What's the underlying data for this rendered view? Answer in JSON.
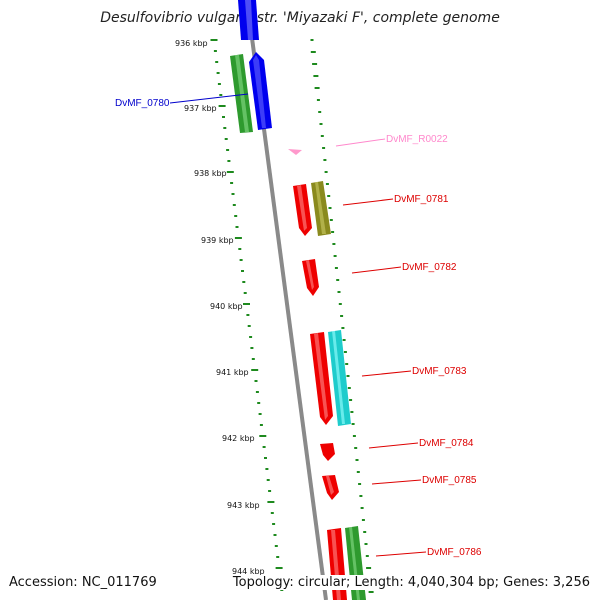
{
  "title": "Desulfovibrio vulgaris str. 'Miyazaki F', complete genome",
  "accession_text": "Accession: NC_011769",
  "topology_text": "Topology: circular; Length: 4,040,304 bp; Genes: 3,256",
  "colors": {
    "backbone": "#8a8a8a",
    "gc_ticks": "#1e8a1e",
    "forward_gene_blue": "#0000ee",
    "forward_gene_green": "#2e9a2e",
    "reverse_gene_red": "#ee0000",
    "olive": "#8a8a1e",
    "cyan": "#1ecccc",
    "rna_pink": "#ff99cc",
    "label_blue": "#0000cc",
    "label_red": "#dd0000",
    "label_pink": "#ff88cc"
  },
  "scale_labels": [
    {
      "kbp": 936,
      "text": "936 kbp"
    },
    {
      "kbp": 937,
      "text": "937 kbp"
    },
    {
      "kbp": 938,
      "text": "938 kbp"
    },
    {
      "kbp": 939,
      "text": "939 kbp"
    },
    {
      "kbp": 940,
      "text": "940 kbp"
    },
    {
      "kbp": 941,
      "text": "941 kbp"
    },
    {
      "kbp": 942,
      "text": "942 kbp"
    },
    {
      "kbp": 943,
      "text": "943 kbp"
    },
    {
      "kbp": 944,
      "text": "944 kbp"
    }
  ],
  "gene_labels": [
    {
      "id": "DvMF_0780",
      "color": "label_blue"
    },
    {
      "id": "DvMF_R0022",
      "color": "label_pink"
    },
    {
      "id": "DvMF_0781",
      "color": "label_red"
    },
    {
      "id": "DvMF_0782",
      "color": "label_red"
    },
    {
      "id": "DvMF_0783",
      "color": "label_red"
    },
    {
      "id": "DvMF_0784",
      "color": "label_red"
    },
    {
      "id": "DvMF_0785",
      "color": "label_red"
    },
    {
      "id": "DvMF_0786",
      "color": "label_red"
    }
  ]
}
